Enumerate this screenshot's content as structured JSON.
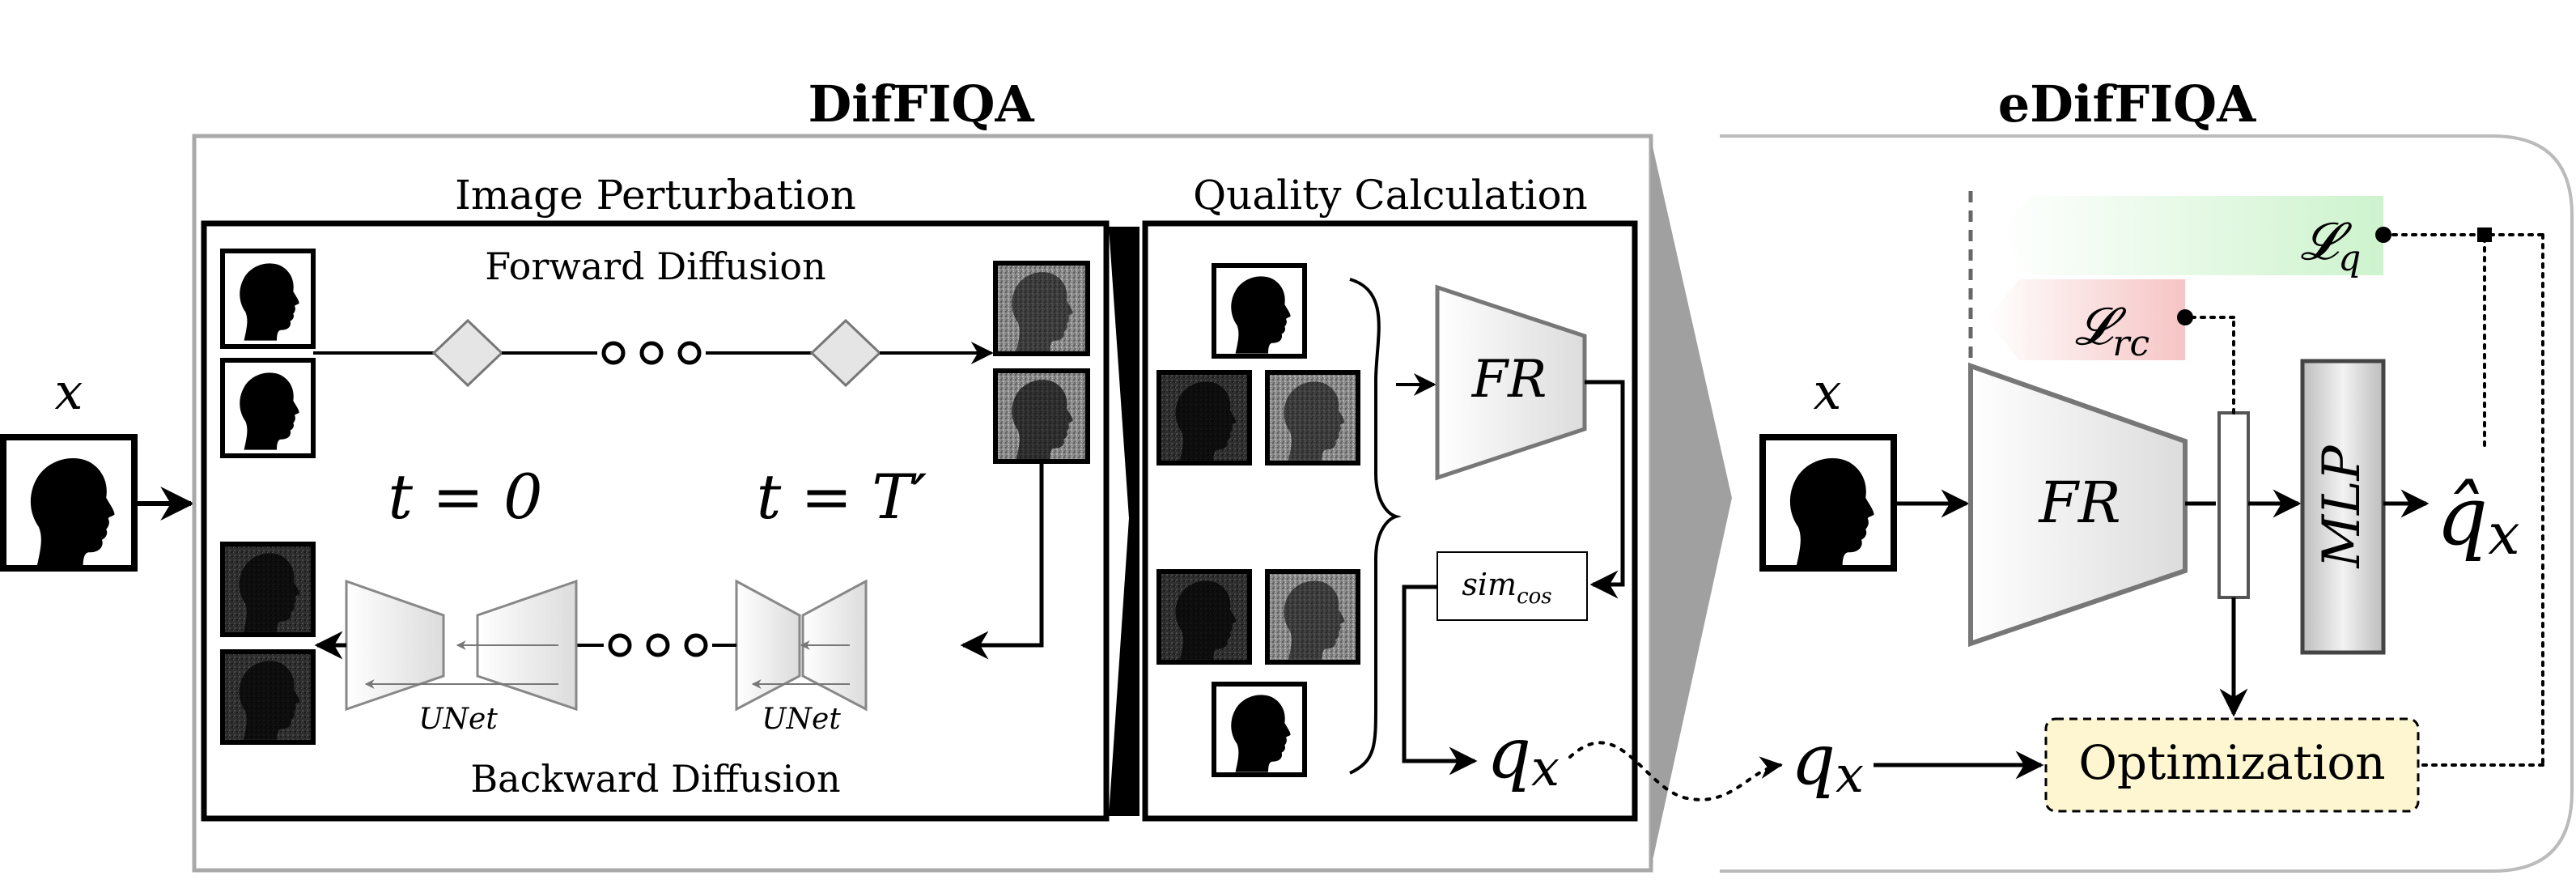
{
  "titles": {
    "difiqa": "DifFIQA",
    "edifiqa": "eDifFIQA",
    "image_perturbation": "Image Perturbation",
    "quality_calculation": "Quality Calculation"
  },
  "perturbation": {
    "forward": "Forward Diffusion",
    "backward": "Backward Diffusion",
    "t_zero": "t = 0",
    "t_end": "t = T′",
    "unet_label": "UNet"
  },
  "quality": {
    "fr": "FR",
    "sim_main": "sim",
    "sim_sub": "cos",
    "qx_main": "q",
    "qx_sub": "x"
  },
  "edif": {
    "x_label": "x",
    "fr": "FR",
    "mlp": "MLP",
    "qhat_main": "q̂",
    "qhat_sub": "x",
    "qx_main": "q",
    "qx_sub": "x",
    "optimization": "Optimization",
    "lq_main": "𝓛",
    "lq_sub": "q",
    "lrc_main": "𝓛",
    "lrc_sub": "rc"
  },
  "input": {
    "x_label": "x"
  },
  "colors": {
    "lq_band": "#d7f5d7",
    "lrc_band": "#f7cccc",
    "optimization_fill": "#fdf6d0",
    "frame_gray": "#a9a9a9",
    "trapezoid_fill": "#eeeeee"
  },
  "icons": {
    "face": "head-silhouette-icon",
    "noise": "noisy-face-icon"
  }
}
